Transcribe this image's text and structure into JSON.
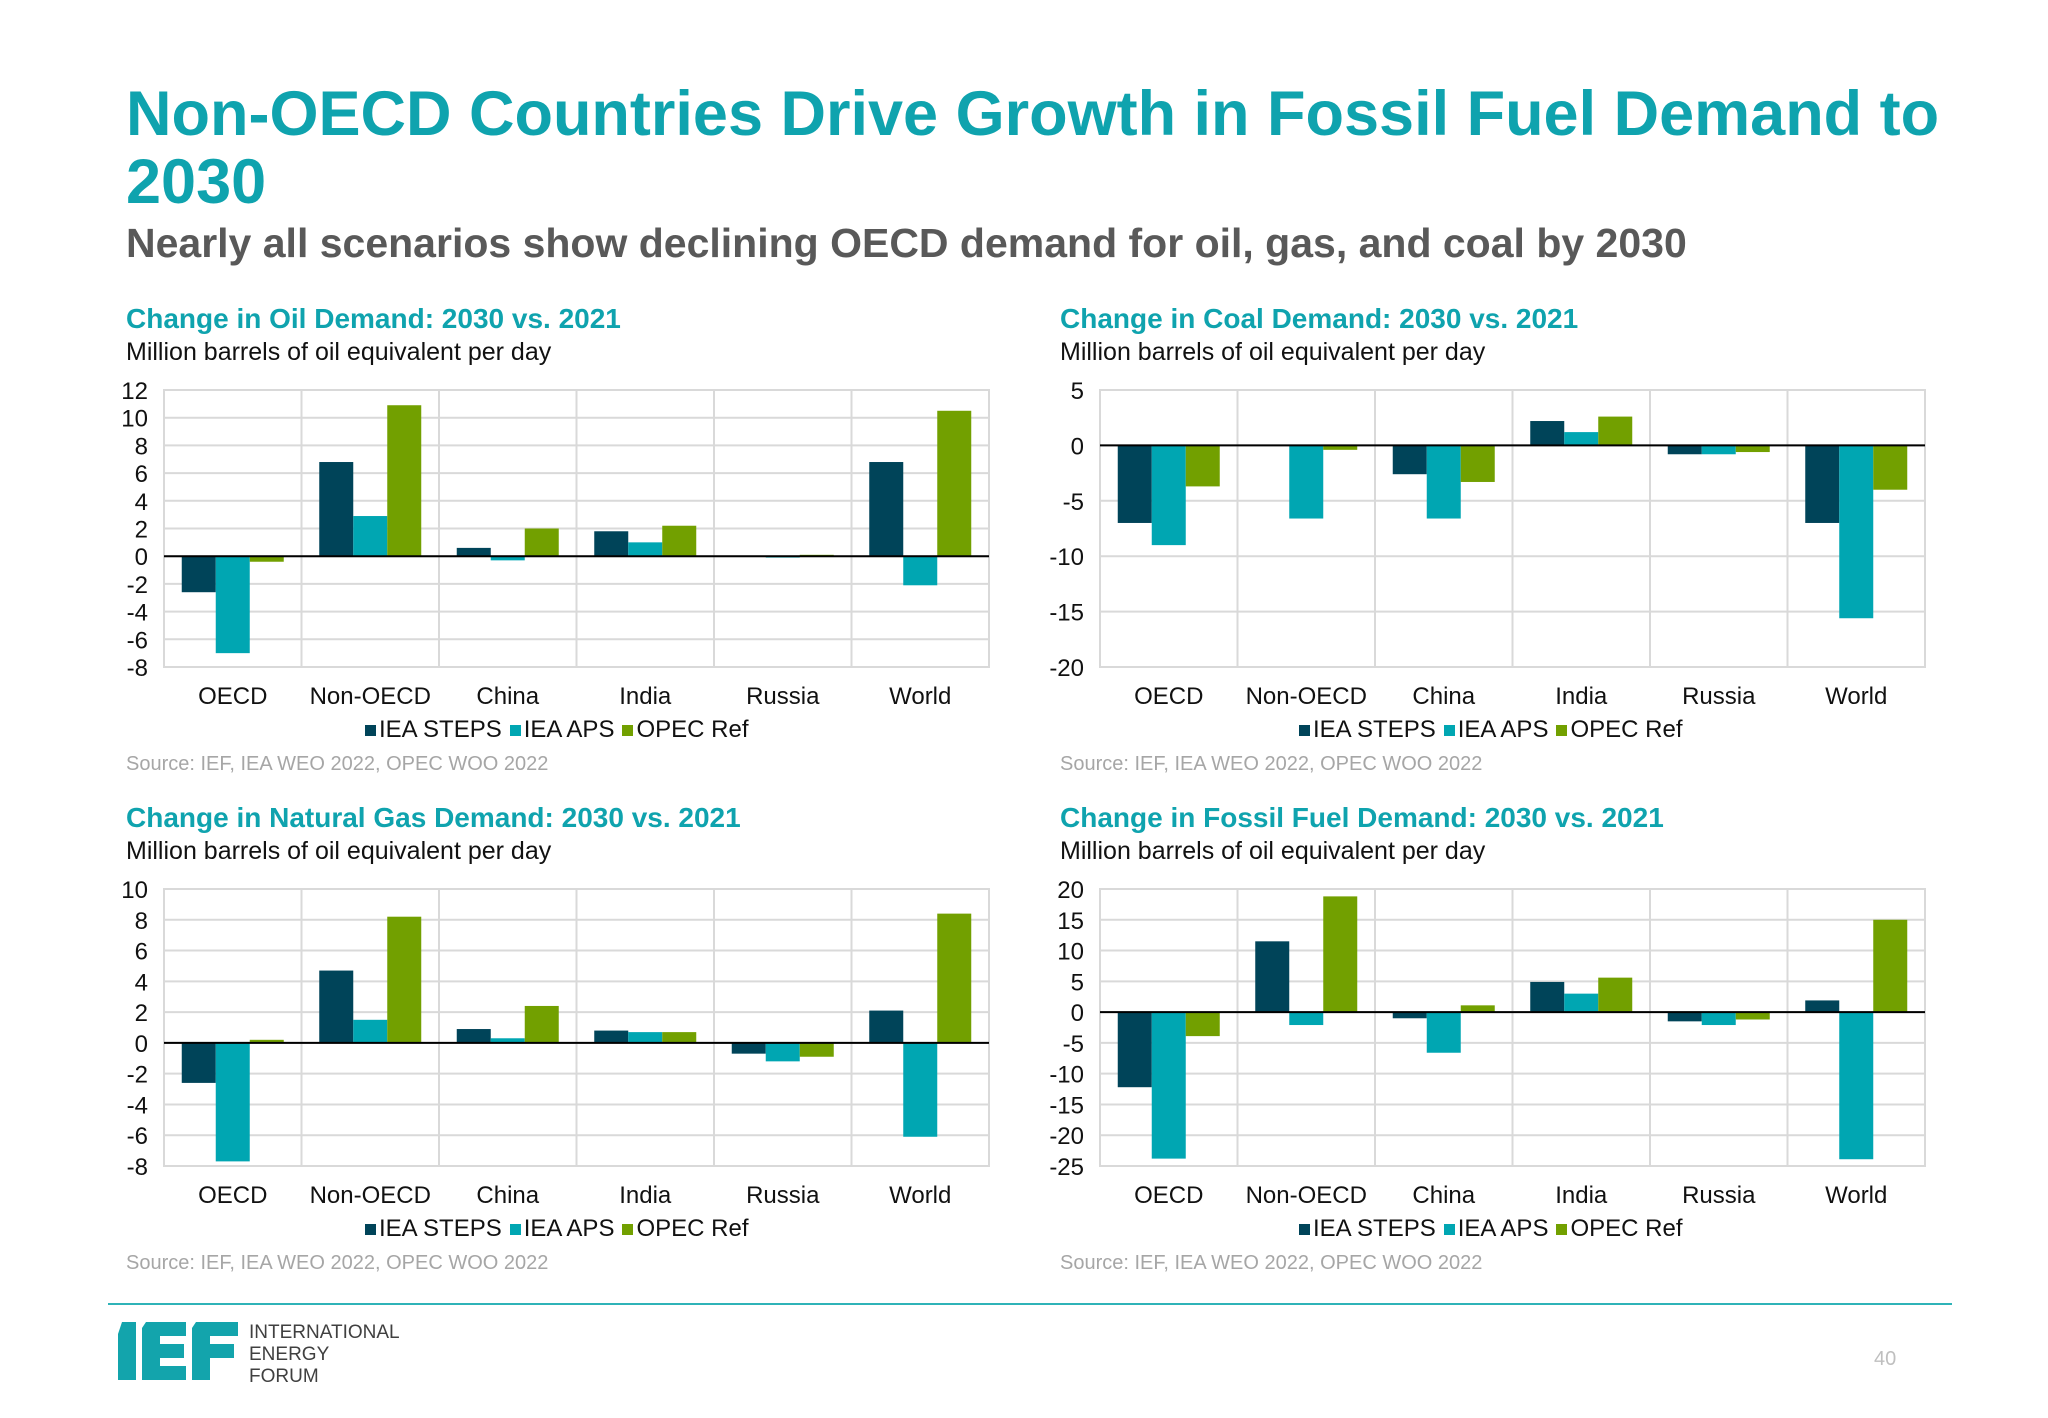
{
  "header": {
    "title": "Non-OECD Countries Drive Growth in Fossil Fuel Demand to 2030",
    "subtitle": "Nearly all scenarios show declining OECD demand for oil, gas, and coal by 2030"
  },
  "colors": {
    "accent": "#0FA3AE",
    "iea_steps": "#004459",
    "iea_aps": "#00A6B2",
    "opec_ref": "#72A000"
  },
  "chart_data": [
    {
      "type": "bar",
      "title": "Change in Oil Demand: 2030 vs. 2021",
      "unit": "Million barrels of oil equivalent per day",
      "categories": [
        "OECD",
        "Non-OECD",
        "China",
        "India",
        "Russia",
        "World"
      ],
      "ylim": [
        -8,
        12
      ],
      "yticks": [
        12,
        10,
        8,
        6,
        4,
        2,
        0,
        -2,
        -4,
        -6,
        -8
      ],
      "grid": true,
      "legend": "bottom",
      "series": [
        {
          "name": "IEA STEPS",
          "values": [
            -2.6,
            6.8,
            0.6,
            1.8,
            0.0,
            6.8
          ]
        },
        {
          "name": "IEA APS",
          "values": [
            -7.0,
            2.9,
            -0.3,
            1.0,
            -0.1,
            -2.1
          ]
        },
        {
          "name": "OPEC Ref",
          "values": [
            -0.4,
            10.9,
            2.0,
            2.2,
            0.1,
            10.5
          ]
        }
      ],
      "source": "Source: IEF, IEA WEO 2022, OPEC WOO 2022"
    },
    {
      "type": "bar",
      "title": "Change in Coal Demand: 2030 vs. 2021",
      "unit": "Million barrels of oil equivalent per day",
      "categories": [
        "OECD",
        "Non-OECD",
        "China",
        "India",
        "Russia",
        "World"
      ],
      "ylim": [
        -20,
        5
      ],
      "yticks": [
        5,
        0,
        -5,
        -10,
        -15,
        -20
      ],
      "grid": true,
      "legend": "bottom",
      "series": [
        {
          "name": "IEA STEPS",
          "values": [
            -7.0,
            0.0,
            -2.6,
            2.2,
            -0.8,
            -7.0
          ]
        },
        {
          "name": "IEA APS",
          "values": [
            -9.0,
            -6.6,
            -6.6,
            1.2,
            -0.8,
            -15.6
          ]
        },
        {
          "name": "OPEC Ref",
          "values": [
            -3.7,
            -0.4,
            -3.3,
            2.6,
            -0.6,
            -4.0
          ]
        }
      ],
      "source": "Source: IEF, IEA WEO 2022, OPEC WOO 2022"
    },
    {
      "type": "bar",
      "title": "Change in Natural Gas Demand: 2030 vs. 2021",
      "unit": "Million barrels of oil equivalent per day",
      "categories": [
        "OECD",
        "Non-OECD",
        "China",
        "India",
        "Russia",
        "World"
      ],
      "ylim": [
        -8,
        10
      ],
      "yticks": [
        10,
        8,
        6,
        4,
        2,
        0,
        -2,
        -4,
        -6,
        -8
      ],
      "grid": true,
      "legend": "bottom",
      "series": [
        {
          "name": "IEA STEPS",
          "values": [
            -2.6,
            4.7,
            0.9,
            0.8,
            -0.7,
            2.1
          ]
        },
        {
          "name": "IEA APS",
          "values": [
            -7.7,
            1.5,
            0.3,
            0.7,
            -1.2,
            -6.1
          ]
        },
        {
          "name": "OPEC Ref",
          "values": [
            0.2,
            8.2,
            2.4,
            0.7,
            -0.9,
            8.4
          ]
        }
      ],
      "source": "Source: IEF, IEA WEO 2022, OPEC WOO 2022"
    },
    {
      "type": "bar",
      "title": "Change in Fossil Fuel Demand: 2030 vs. 2021",
      "unit": "Million barrels of oil equivalent per day",
      "categories": [
        "OECD",
        "Non-OECD",
        "China",
        "India",
        "Russia",
        "World"
      ],
      "ylim": [
        -25,
        20
      ],
      "yticks": [
        20,
        15,
        10,
        5,
        0,
        -5,
        -10,
        -15,
        -20,
        -25
      ],
      "grid": true,
      "legend": "bottom",
      "series": [
        {
          "name": "IEA STEPS",
          "values": [
            -12.2,
            11.5,
            -1.0,
            4.9,
            -1.5,
            1.9
          ]
        },
        {
          "name": "IEA APS",
          "values": [
            -23.8,
            -2.1,
            -6.6,
            3.0,
            -2.1,
            -23.9
          ]
        },
        {
          "name": "OPEC Ref",
          "values": [
            -3.9,
            18.8,
            1.1,
            5.6,
            -1.2,
            15.0
          ]
        }
      ],
      "source": "Source: IEF, IEA WEO 2022, OPEC WOO 2022"
    }
  ],
  "footer": {
    "logo_mark": "IEF",
    "logo_lines": [
      "INTERNATIONAL",
      "ENERGY",
      "FORUM"
    ],
    "page_number": "40"
  }
}
